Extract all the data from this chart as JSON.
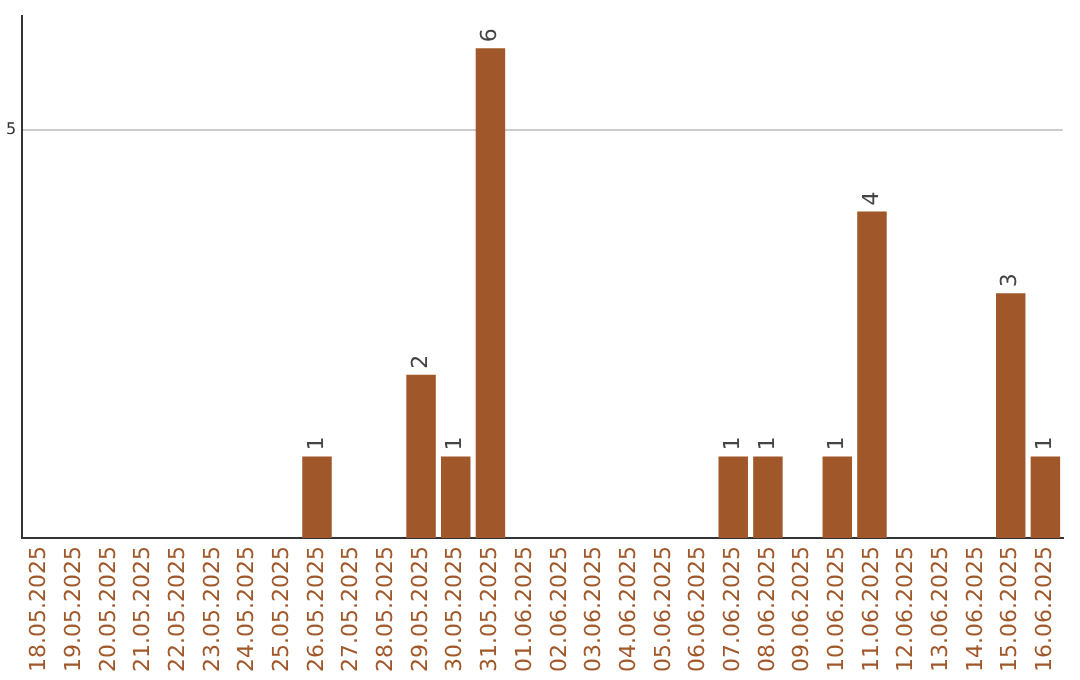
{
  "chart_data": {
    "type": "bar",
    "categories": [
      "18.05.2025",
      "19.05.2025",
      "20.05.2025",
      "21.05.2025",
      "22.05.2025",
      "23.05.2025",
      "24.05.2025",
      "25.05.2025",
      "26.05.2025",
      "27.05.2025",
      "28.05.2025",
      "29.05.2025",
      "30.05.2025",
      "31.05.2025",
      "01.06.2025",
      "02.06.2025",
      "03.06.2025",
      "04.06.2025",
      "05.06.2025",
      "06.06.2025",
      "07.06.2025",
      "08.06.2025",
      "09.06.2025",
      "10.06.2025",
      "11.06.2025",
      "12.06.2025",
      "13.06.2025",
      "14.06.2025",
      "15.06.2025",
      "16.06.2025"
    ],
    "values": [
      null,
      null,
      null,
      null,
      null,
      null,
      null,
      null,
      1,
      null,
      null,
      2,
      1,
      6,
      null,
      null,
      null,
      null,
      null,
      null,
      1,
      1,
      null,
      1,
      4,
      null,
      null,
      null,
      3,
      1
    ],
    "color": "#a0582a",
    "ylim": [
      0,
      6.4
    ],
    "yticks": [
      5
    ],
    "grid": "y",
    "data_labels": true,
    "legend": false
  }
}
